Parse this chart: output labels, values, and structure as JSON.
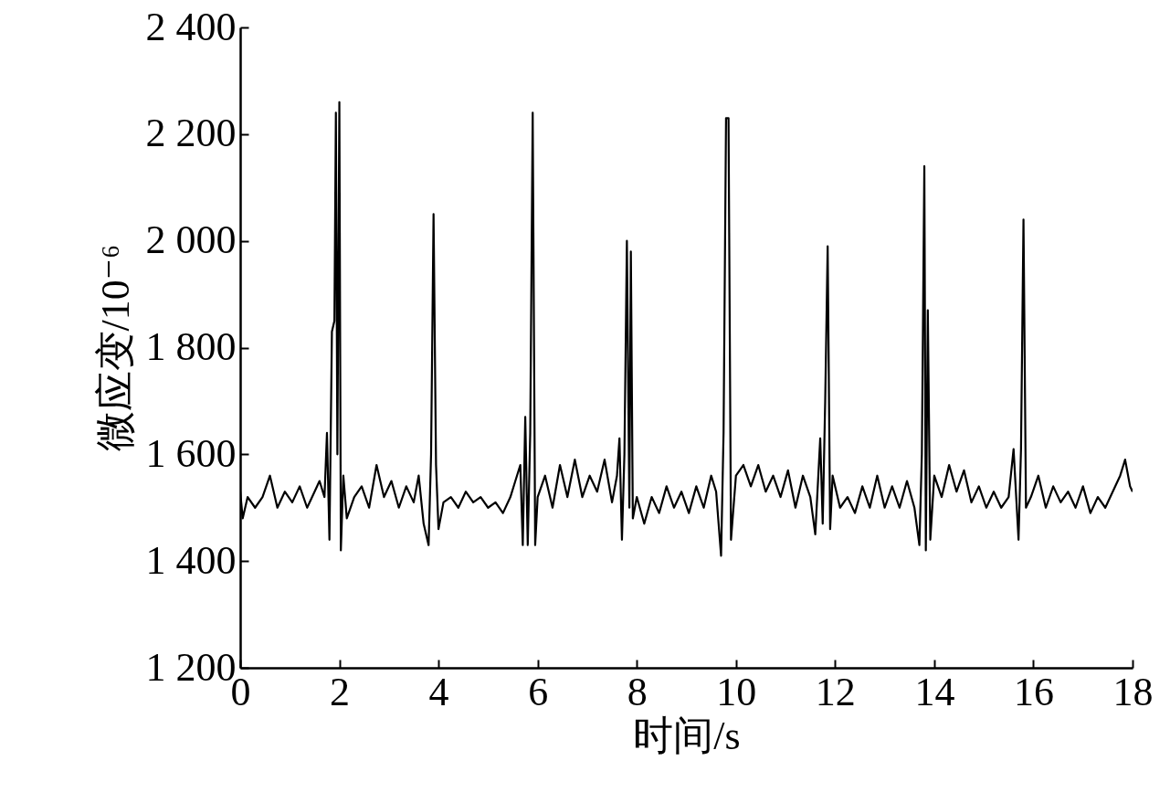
{
  "chart_data": {
    "type": "line",
    "xlabel": "时间/s",
    "ylabel": "微应变/10⁻⁶",
    "xlim": [
      0,
      18
    ],
    "ylim": [
      1200,
      2400
    ],
    "xticks": [
      0,
      2,
      4,
      6,
      8,
      10,
      12,
      14,
      16,
      18
    ],
    "yticks": [
      {
        "value": 1200,
        "label": "1 200"
      },
      {
        "value": 1400,
        "label": "1 400"
      },
      {
        "value": 1600,
        "label": "1 600"
      },
      {
        "value": 1800,
        "label": "1 800"
      },
      {
        "value": 2000,
        "label": "2 000"
      },
      {
        "value": 2200,
        "label": "2 200"
      },
      {
        "value": 2400,
        "label": "2 400"
      }
    ],
    "grid": false,
    "series": [
      {
        "color": "#000000",
        "x": [
          0,
          0.05,
          0.15,
          0.3,
          0.45,
          0.6,
          0.75,
          0.9,
          1.05,
          1.2,
          1.35,
          1.5,
          1.6,
          1.7,
          1.75,
          1.8,
          1.85,
          1.9,
          1.93,
          1.96,
          2.0,
          2.03,
          2.08,
          2.15,
          2.3,
          2.45,
          2.6,
          2.75,
          2.9,
          3.05,
          3.2,
          3.35,
          3.5,
          3.6,
          3.7,
          3.8,
          3.85,
          3.9,
          3.95,
          4.0,
          4.1,
          4.25,
          4.4,
          4.55,
          4.7,
          4.85,
          5.0,
          5.15,
          5.3,
          5.45,
          5.55,
          5.65,
          5.7,
          5.75,
          5.8,
          5.85,
          5.9,
          5.95,
          6.0,
          6.15,
          6.3,
          6.45,
          6.6,
          6.75,
          6.9,
          7.05,
          7.2,
          7.35,
          7.5,
          7.6,
          7.65,
          7.7,
          7.75,
          7.8,
          7.85,
          7.88,
          7.92,
          8.0,
          8.15,
          8.3,
          8.45,
          8.6,
          8.75,
          8.9,
          9.05,
          9.2,
          9.35,
          9.5,
          9.6,
          9.7,
          9.75,
          9.8,
          9.85,
          9.9,
          10.0,
          10.15,
          10.3,
          10.45,
          10.6,
          10.75,
          10.9,
          11.05,
          11.2,
          11.35,
          11.5,
          11.6,
          11.7,
          11.75,
          11.8,
          11.85,
          11.9,
          11.95,
          12.1,
          12.25,
          12.4,
          12.55,
          12.7,
          12.85,
          13.0,
          13.15,
          13.3,
          13.45,
          13.6,
          13.7,
          13.75,
          13.8,
          13.83,
          13.87,
          13.92,
          14.0,
          14.15,
          14.3,
          14.45,
          14.6,
          14.75,
          14.9,
          15.05,
          15.2,
          15.35,
          15.5,
          15.6,
          15.7,
          15.75,
          15.8,
          15.85,
          15.95,
          16.1,
          16.25,
          16.4,
          16.55,
          16.7,
          16.85,
          17.0,
          17.15,
          17.3,
          17.45,
          17.6,
          17.75,
          17.85,
          17.95,
          18.0
        ],
        "values": [
          1530,
          1480,
          1520,
          1500,
          1520,
          1560,
          1500,
          1530,
          1510,
          1540,
          1500,
          1530,
          1550,
          1520,
          1640,
          1440,
          1830,
          1850,
          2240,
          1600,
          2260,
          1420,
          1560,
          1480,
          1520,
          1540,
          1500,
          1580,
          1520,
          1550,
          1500,
          1540,
          1510,
          1560,
          1470,
          1430,
          1600,
          2050,
          1580,
          1460,
          1510,
          1520,
          1500,
          1530,
          1510,
          1520,
          1500,
          1510,
          1490,
          1520,
          1550,
          1580,
          1430,
          1670,
          1430,
          1640,
          2240,
          1430,
          1520,
          1560,
          1500,
          1580,
          1520,
          1590,
          1520,
          1560,
          1530,
          1590,
          1510,
          1560,
          1630,
          1440,
          1600,
          2000,
          1500,
          1980,
          1480,
          1520,
          1470,
          1520,
          1490,
          1540,
          1500,
          1530,
          1490,
          1540,
          1500,
          1560,
          1530,
          1410,
          1640,
          2230,
          2230,
          1440,
          1560,
          1580,
          1540,
          1580,
          1530,
          1560,
          1520,
          1570,
          1500,
          1560,
          1520,
          1450,
          1630,
          1470,
          1700,
          1990,
          1460,
          1560,
          1500,
          1520,
          1490,
          1540,
          1500,
          1560,
          1500,
          1540,
          1500,
          1550,
          1500,
          1430,
          1600,
          2140,
          1420,
          1870,
          1440,
          1560,
          1520,
          1580,
          1530,
          1570,
          1510,
          1540,
          1500,
          1530,
          1500,
          1520,
          1610,
          1440,
          1610,
          2040,
          1500,
          1520,
          1560,
          1500,
          1540,
          1510,
          1530,
          1500,
          1540,
          1490,
          1520,
          1500,
          1530,
          1560,
          1590,
          1540,
          1530
        ]
      }
    ]
  }
}
